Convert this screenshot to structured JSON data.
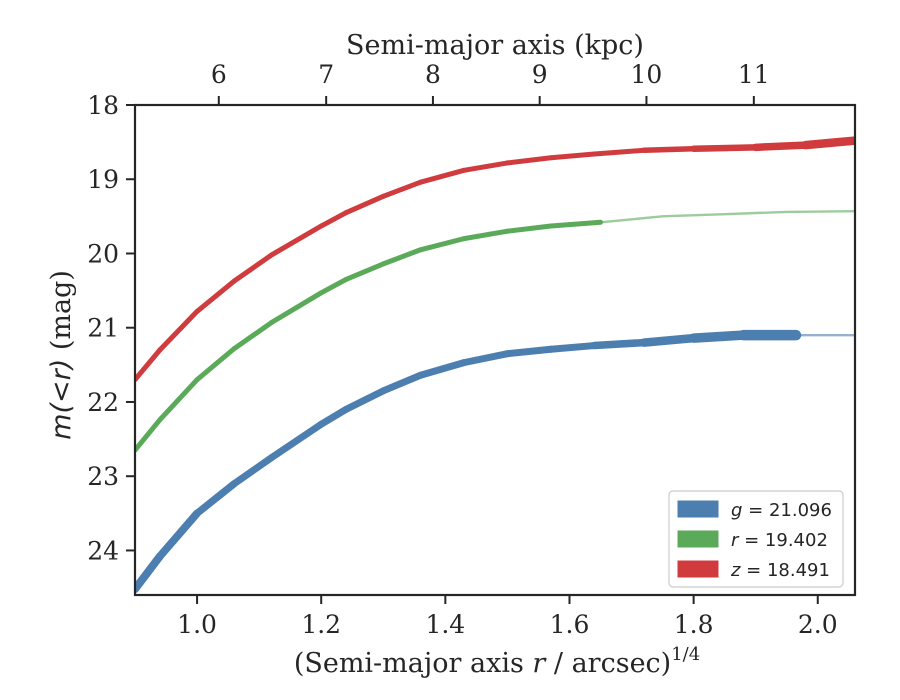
{
  "chart_data": {
    "type": "line",
    "x_axis": {
      "label_prefix": "(Semi-major axis ",
      "label_var": "r",
      "label_mid": " / arcsec)",
      "label_sup": "1/4",
      "xlim": [
        0.9,
        2.06
      ],
      "ticks": [
        1.0,
        1.2,
        1.4,
        1.6,
        1.8,
        2.0
      ],
      "tick_labels": [
        "1.0",
        "1.2",
        "1.4",
        "1.6",
        "1.8",
        "2.0"
      ]
    },
    "top_axis": {
      "label": "Semi-major axis (kpc)",
      "ticks_kpc": [
        6,
        7,
        8,
        9,
        10,
        11
      ],
      "tick_labels": [
        "6",
        "7",
        "8",
        "9",
        "10",
        "11"
      ],
      "tick_positions_x": [
        1.035,
        1.208,
        1.38,
        1.552,
        1.724,
        1.897
      ]
    },
    "y_axis": {
      "label_var": "m(<r)",
      "label_unit": " (mag)",
      "ylim": [
        24.6,
        18.0
      ],
      "inverted": true,
      "ticks": [
        18,
        19,
        20,
        21,
        22,
        23,
        24
      ],
      "tick_labels": [
        "18",
        "19",
        "20",
        "21",
        "22",
        "23",
        "24"
      ]
    },
    "legend": {
      "placement": "lower-right",
      "entries": [
        {
          "var": "g",
          "text": " = 21.096",
          "color": "#4C7FB0"
        },
        {
          "var": "r",
          "text": " = 19.402",
          "color": "#5BAA5A"
        },
        {
          "var": "z",
          "text": " = 18.491",
          "color": "#D03B3E"
        }
      ]
    },
    "series": [
      {
        "name": "g = 21.096",
        "color": "#4C7FB0",
        "x": [
          0.9,
          0.94,
          1.0,
          1.06,
          1.12,
          1.2,
          1.24,
          1.3,
          1.36,
          1.43,
          1.5,
          1.57,
          1.64,
          1.72,
          1.8,
          1.88,
          1.965
        ],
        "y": [
          24.52,
          24.08,
          23.5,
          23.1,
          22.75,
          22.3,
          22.1,
          21.85,
          21.64,
          21.47,
          21.35,
          21.29,
          21.24,
          21.2,
          21.14,
          21.1,
          21.1
        ],
        "width": [
          8,
          8,
          7.5,
          7,
          7,
          7,
          7,
          7,
          7,
          7,
          7,
          7,
          7,
          8,
          9,
          10,
          11
        ],
        "extension": {
          "x": [
            1.965,
            2.06
          ],
          "y": [
            21.1,
            21.1
          ]
        }
      },
      {
        "name": "r = 19.402",
        "color": "#5BAA5A",
        "x": [
          0.9,
          0.94,
          1.0,
          1.06,
          1.12,
          1.2,
          1.24,
          1.3,
          1.36,
          1.43,
          1.5,
          1.57,
          1.65
        ],
        "y": [
          22.65,
          22.24,
          21.7,
          21.28,
          20.93,
          20.53,
          20.35,
          20.14,
          19.95,
          19.8,
          19.7,
          19.63,
          19.58
        ],
        "width": [
          5,
          5,
          5,
          5,
          5,
          5,
          5,
          5,
          5,
          5,
          5,
          5,
          5
        ],
        "extension": {
          "x": [
            1.65,
            1.75,
            1.85,
            1.95,
            2.06
          ],
          "y": [
            19.58,
            19.5,
            19.47,
            19.44,
            19.43
          ]
        }
      },
      {
        "name": "z = 18.491",
        "color": "#D03B3E",
        "x": [
          0.9,
          0.94,
          1.0,
          1.06,
          1.12,
          1.2,
          1.24,
          1.3,
          1.36,
          1.43,
          1.5,
          1.57,
          1.64,
          1.72,
          1.8,
          1.9,
          1.98,
          2.06
        ],
        "y": [
          21.7,
          21.3,
          20.78,
          20.37,
          20.02,
          19.63,
          19.45,
          19.23,
          19.04,
          18.88,
          18.78,
          18.71,
          18.66,
          18.61,
          18.59,
          18.57,
          18.54,
          18.48
        ],
        "width": [
          5,
          5,
          5,
          5,
          5,
          5,
          5,
          5,
          5,
          5,
          5,
          5,
          5,
          5,
          6,
          7,
          8,
          9
        ]
      }
    ]
  }
}
